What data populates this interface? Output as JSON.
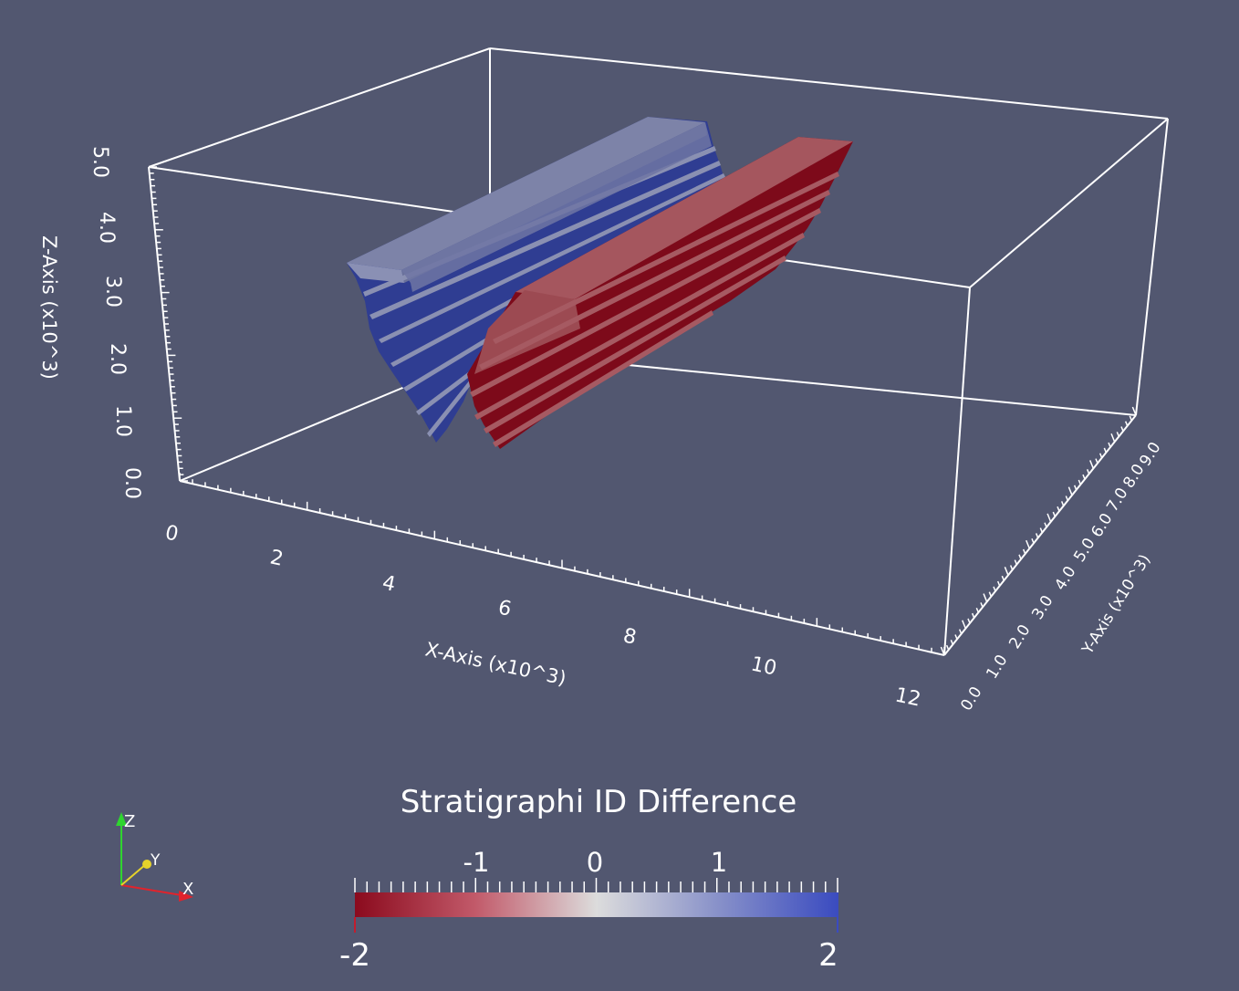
{
  "scene": {
    "background": "#525770",
    "box_color": "#ffffff",
    "x_axis": {
      "title": "X-Axis (x10^3)",
      "ticks": [
        "0",
        "2",
        "4",
        "6",
        "8",
        "10",
        "12"
      ]
    },
    "y_axis": {
      "title": "Y-Axis (x10^3)",
      "ticks": [
        "0.0",
        "1.0",
        "2.0",
        "3.0",
        "4.0",
        "5.0",
        "6.0",
        "7.0",
        "8.0",
        "9.0"
      ]
    },
    "z_axis": {
      "title": "Z-Axis (x10^3)",
      "ticks": [
        "0.0",
        "1.0",
        "2.0",
        "3.0",
        "4.0",
        "5.0"
      ]
    },
    "bodies": [
      {
        "name": "blue-stratigraphic-body",
        "color": "#6c739c",
        "dark_color": "#2f3d92"
      },
      {
        "name": "red-stratigraphic-body",
        "color": "#a0555c",
        "dark_color": "#7d0a1a"
      }
    ]
  },
  "colorbar": {
    "title": "Stratigraphi ID Difference",
    "ticks": [
      "-1",
      "0",
      "1"
    ],
    "min_label": "-2",
    "max_label": "2",
    "range": [
      -2,
      2
    ],
    "colors": [
      "#b2182b",
      "#dddddd",
      "#3b4cc0"
    ]
  },
  "orientation": {
    "x_label": "X",
    "y_label": "Y",
    "z_label": "Z",
    "x_color": "#e0232c",
    "y_color": "#e6d32a",
    "z_color": "#2fd52f"
  }
}
